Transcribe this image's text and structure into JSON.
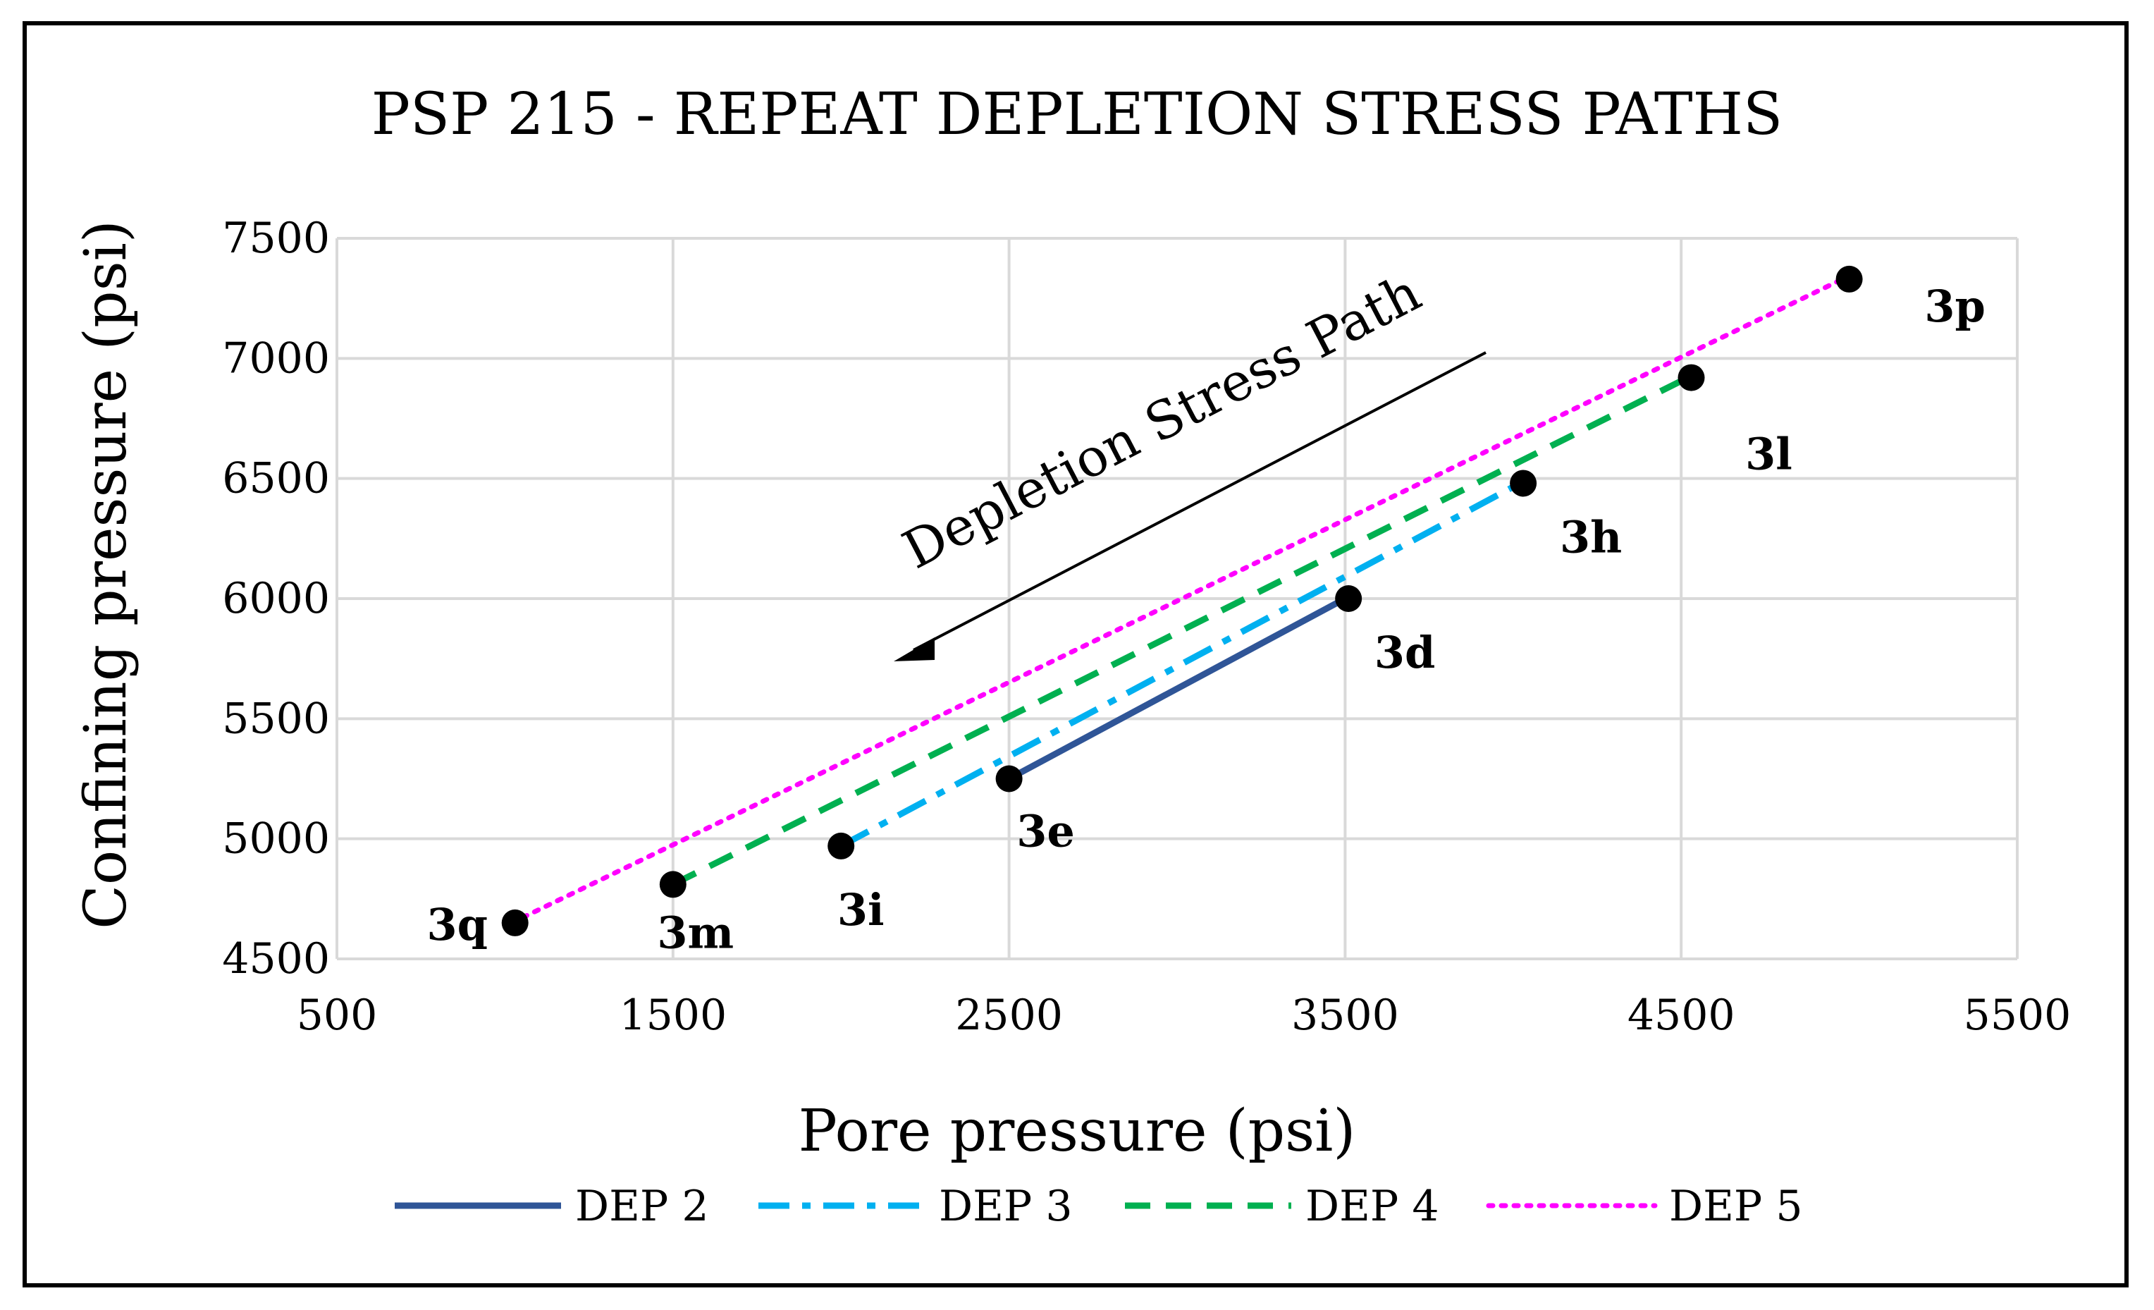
{
  "chart_data": {
    "type": "line",
    "title": "PSP 215 - REPEAT DEPLETION STRESS PATHS",
    "xlabel": "Pore pressure (psi)",
    "ylabel": "Confining pressure (psi)",
    "xlim": [
      500,
      5500
    ],
    "ylim": [
      4500,
      7500
    ],
    "xticks": [
      "500",
      "1500",
      "2500",
      "3500",
      "4500",
      "5500"
    ],
    "yticks": [
      "4500",
      "5000",
      "5500",
      "6000",
      "6500",
      "7000",
      "7500"
    ],
    "grid": true,
    "legend_position": "bottom",
    "series": [
      {
        "name": "DEP 2",
        "color": "#2F5597",
        "style": "solid",
        "x": [
          2500,
          3500
        ],
        "y": [
          5250,
          6000
        ]
      },
      {
        "name": "DEP 3",
        "color": "#00B0F0",
        "style": "dash-dot",
        "x": [
          2000,
          4020
        ],
        "y": [
          4970,
          6480
        ]
      },
      {
        "name": "DEP 4",
        "color": "#00B050",
        "style": "dashed",
        "x": [
          1500,
          4520
        ],
        "y": [
          4810,
          6920
        ]
      },
      {
        "name": "DEP 5",
        "color": "#FF00FF",
        "style": "dotted",
        "x": [
          1020,
          4980
        ],
        "y": [
          4650,
          7330
        ]
      }
    ],
    "points": [
      {
        "label": "3p",
        "x": 5000,
        "y": 7330
      },
      {
        "label": "3l",
        "x": 4530,
        "y": 6920
      },
      {
        "label": "3h",
        "x": 4030,
        "y": 6480
      },
      {
        "label": "3d",
        "x": 3510,
        "y": 6000
      },
      {
        "label": "3e",
        "x": 2500,
        "y": 5250
      },
      {
        "label": "3i",
        "x": 2000,
        "y": 4970
      },
      {
        "label": "3m",
        "x": 1500,
        "y": 4810
      },
      {
        "label": "3q",
        "x": 1030,
        "y": 4650
      }
    ],
    "annotation": "Depletion Stress Path"
  }
}
